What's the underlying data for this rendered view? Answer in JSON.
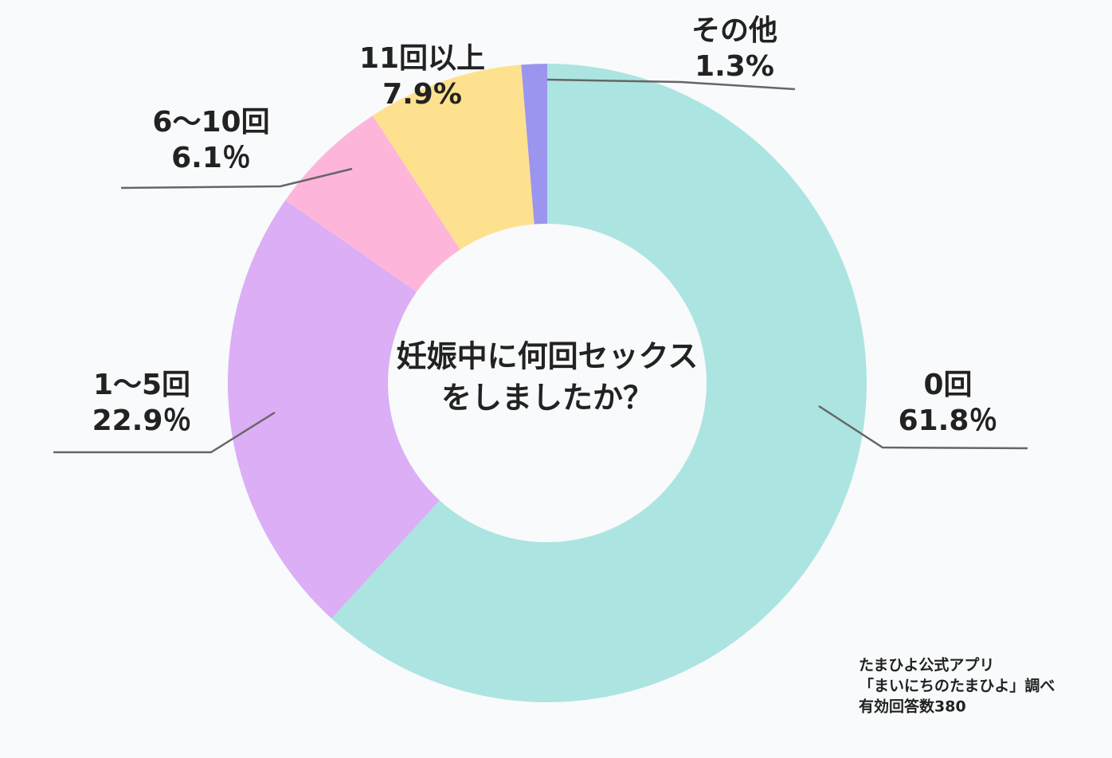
{
  "chart_data": {
    "type": "pie",
    "center_text": [
      "妊娠中に何回セックス",
      "をしましたか？"
    ],
    "categories": [
      "0回",
      "1〜5回",
      "6〜10回",
      "11回以上",
      "その他"
    ],
    "values": [
      61.8,
      22.9,
      6.1,
      7.9,
      1.3
    ],
    "value_labels": [
      "61.8％",
      "22.9％",
      "6.1％",
      "7.9%",
      "1.3%"
    ],
    "colors": [
      "#ace4e1",
      "#dbaef5",
      "#fdb6da",
      "#fee18e",
      "#9b95ef"
    ],
    "source_note": [
      "たまひよ公式アプリ",
      "「まいにちのたまひよ」調べ",
      "有効回答数380"
    ]
  }
}
